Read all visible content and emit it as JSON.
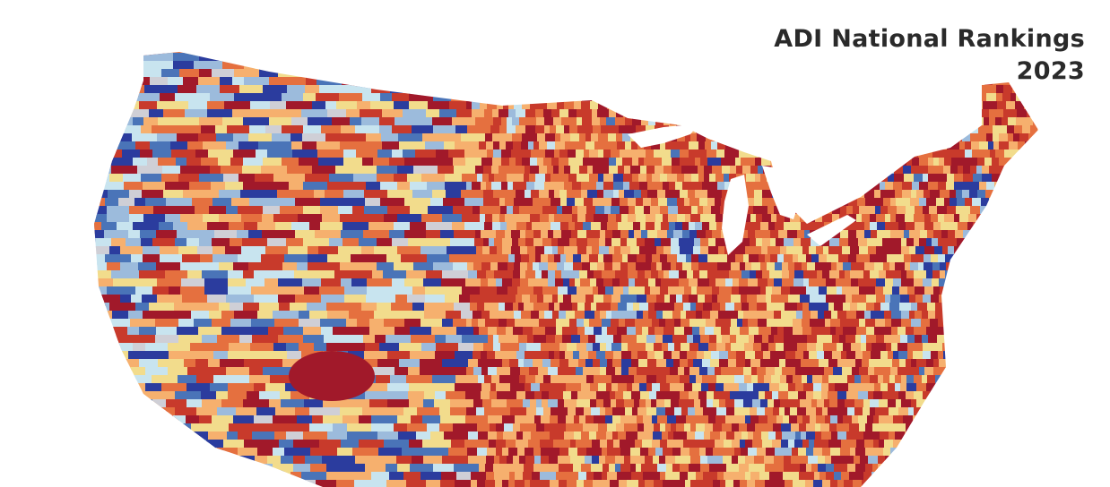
{
  "header": {
    "title": "ADI National Rankings",
    "year": "2023"
  }
}
